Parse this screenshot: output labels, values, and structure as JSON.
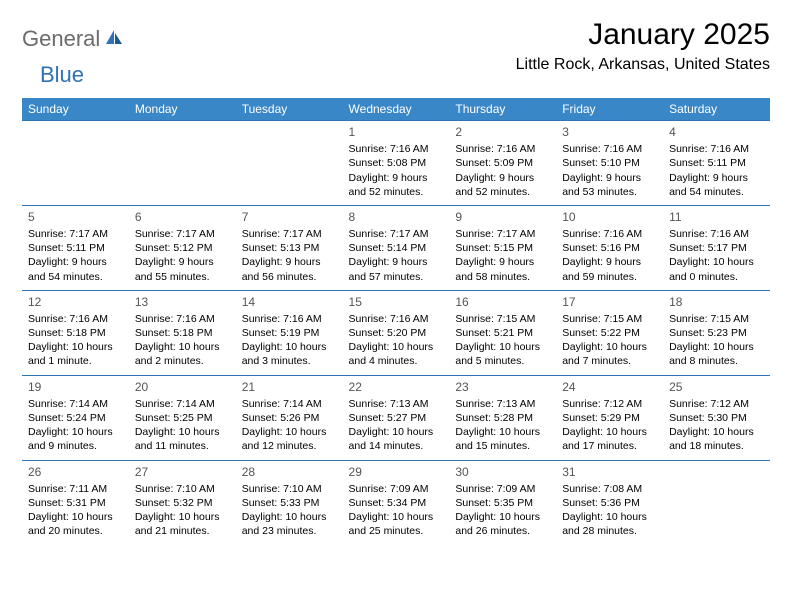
{
  "logo": {
    "general": "General",
    "blue": "Blue"
  },
  "title": "January 2025",
  "location": "Little Rock, Arkansas, United States",
  "style": {
    "header_bg": "#3a87c8",
    "header_fg": "#ffffff",
    "cell_border": "#2d73b6",
    "logo_gray": "#6b6b6b",
    "logo_blue": "#2d73b6",
    "title_fontsize": 30,
    "location_fontsize": 16,
    "dayheader_fontsize": 12,
    "cell_fontsize": 10.5
  },
  "day_headers": [
    "Sunday",
    "Monday",
    "Tuesday",
    "Wednesday",
    "Thursday",
    "Friday",
    "Saturday"
  ],
  "weeks": [
    [
      null,
      null,
      null,
      {
        "num": "1",
        "sunrise": "Sunrise: 7:16 AM",
        "sunset": "Sunset: 5:08 PM",
        "daylight": "Daylight: 9 hours and 52 minutes."
      },
      {
        "num": "2",
        "sunrise": "Sunrise: 7:16 AM",
        "sunset": "Sunset: 5:09 PM",
        "daylight": "Daylight: 9 hours and 52 minutes."
      },
      {
        "num": "3",
        "sunrise": "Sunrise: 7:16 AM",
        "sunset": "Sunset: 5:10 PM",
        "daylight": "Daylight: 9 hours and 53 minutes."
      },
      {
        "num": "4",
        "sunrise": "Sunrise: 7:16 AM",
        "sunset": "Sunset: 5:11 PM",
        "daylight": "Daylight: 9 hours and 54 minutes."
      }
    ],
    [
      {
        "num": "5",
        "sunrise": "Sunrise: 7:17 AM",
        "sunset": "Sunset: 5:11 PM",
        "daylight": "Daylight: 9 hours and 54 minutes."
      },
      {
        "num": "6",
        "sunrise": "Sunrise: 7:17 AM",
        "sunset": "Sunset: 5:12 PM",
        "daylight": "Daylight: 9 hours and 55 minutes."
      },
      {
        "num": "7",
        "sunrise": "Sunrise: 7:17 AM",
        "sunset": "Sunset: 5:13 PM",
        "daylight": "Daylight: 9 hours and 56 minutes."
      },
      {
        "num": "8",
        "sunrise": "Sunrise: 7:17 AM",
        "sunset": "Sunset: 5:14 PM",
        "daylight": "Daylight: 9 hours and 57 minutes."
      },
      {
        "num": "9",
        "sunrise": "Sunrise: 7:17 AM",
        "sunset": "Sunset: 5:15 PM",
        "daylight": "Daylight: 9 hours and 58 minutes."
      },
      {
        "num": "10",
        "sunrise": "Sunrise: 7:16 AM",
        "sunset": "Sunset: 5:16 PM",
        "daylight": "Daylight: 9 hours and 59 minutes."
      },
      {
        "num": "11",
        "sunrise": "Sunrise: 7:16 AM",
        "sunset": "Sunset: 5:17 PM",
        "daylight": "Daylight: 10 hours and 0 minutes."
      }
    ],
    [
      {
        "num": "12",
        "sunrise": "Sunrise: 7:16 AM",
        "sunset": "Sunset: 5:18 PM",
        "daylight": "Daylight: 10 hours and 1 minute."
      },
      {
        "num": "13",
        "sunrise": "Sunrise: 7:16 AM",
        "sunset": "Sunset: 5:18 PM",
        "daylight": "Daylight: 10 hours and 2 minutes."
      },
      {
        "num": "14",
        "sunrise": "Sunrise: 7:16 AM",
        "sunset": "Sunset: 5:19 PM",
        "daylight": "Daylight: 10 hours and 3 minutes."
      },
      {
        "num": "15",
        "sunrise": "Sunrise: 7:16 AM",
        "sunset": "Sunset: 5:20 PM",
        "daylight": "Daylight: 10 hours and 4 minutes."
      },
      {
        "num": "16",
        "sunrise": "Sunrise: 7:15 AM",
        "sunset": "Sunset: 5:21 PM",
        "daylight": "Daylight: 10 hours and 5 minutes."
      },
      {
        "num": "17",
        "sunrise": "Sunrise: 7:15 AM",
        "sunset": "Sunset: 5:22 PM",
        "daylight": "Daylight: 10 hours and 7 minutes."
      },
      {
        "num": "18",
        "sunrise": "Sunrise: 7:15 AM",
        "sunset": "Sunset: 5:23 PM",
        "daylight": "Daylight: 10 hours and 8 minutes."
      }
    ],
    [
      {
        "num": "19",
        "sunrise": "Sunrise: 7:14 AM",
        "sunset": "Sunset: 5:24 PM",
        "daylight": "Daylight: 10 hours and 9 minutes."
      },
      {
        "num": "20",
        "sunrise": "Sunrise: 7:14 AM",
        "sunset": "Sunset: 5:25 PM",
        "daylight": "Daylight: 10 hours and 11 minutes."
      },
      {
        "num": "21",
        "sunrise": "Sunrise: 7:14 AM",
        "sunset": "Sunset: 5:26 PM",
        "daylight": "Daylight: 10 hours and 12 minutes."
      },
      {
        "num": "22",
        "sunrise": "Sunrise: 7:13 AM",
        "sunset": "Sunset: 5:27 PM",
        "daylight": "Daylight: 10 hours and 14 minutes."
      },
      {
        "num": "23",
        "sunrise": "Sunrise: 7:13 AM",
        "sunset": "Sunset: 5:28 PM",
        "daylight": "Daylight: 10 hours and 15 minutes."
      },
      {
        "num": "24",
        "sunrise": "Sunrise: 7:12 AM",
        "sunset": "Sunset: 5:29 PM",
        "daylight": "Daylight: 10 hours and 17 minutes."
      },
      {
        "num": "25",
        "sunrise": "Sunrise: 7:12 AM",
        "sunset": "Sunset: 5:30 PM",
        "daylight": "Daylight: 10 hours and 18 minutes."
      }
    ],
    [
      {
        "num": "26",
        "sunrise": "Sunrise: 7:11 AM",
        "sunset": "Sunset: 5:31 PM",
        "daylight": "Daylight: 10 hours and 20 minutes."
      },
      {
        "num": "27",
        "sunrise": "Sunrise: 7:10 AM",
        "sunset": "Sunset: 5:32 PM",
        "daylight": "Daylight: 10 hours and 21 minutes."
      },
      {
        "num": "28",
        "sunrise": "Sunrise: 7:10 AM",
        "sunset": "Sunset: 5:33 PM",
        "daylight": "Daylight: 10 hours and 23 minutes."
      },
      {
        "num": "29",
        "sunrise": "Sunrise: 7:09 AM",
        "sunset": "Sunset: 5:34 PM",
        "daylight": "Daylight: 10 hours and 25 minutes."
      },
      {
        "num": "30",
        "sunrise": "Sunrise: 7:09 AM",
        "sunset": "Sunset: 5:35 PM",
        "daylight": "Daylight: 10 hours and 26 minutes."
      },
      {
        "num": "31",
        "sunrise": "Sunrise: 7:08 AM",
        "sunset": "Sunset: 5:36 PM",
        "daylight": "Daylight: 10 hours and 28 minutes."
      },
      null
    ]
  ]
}
